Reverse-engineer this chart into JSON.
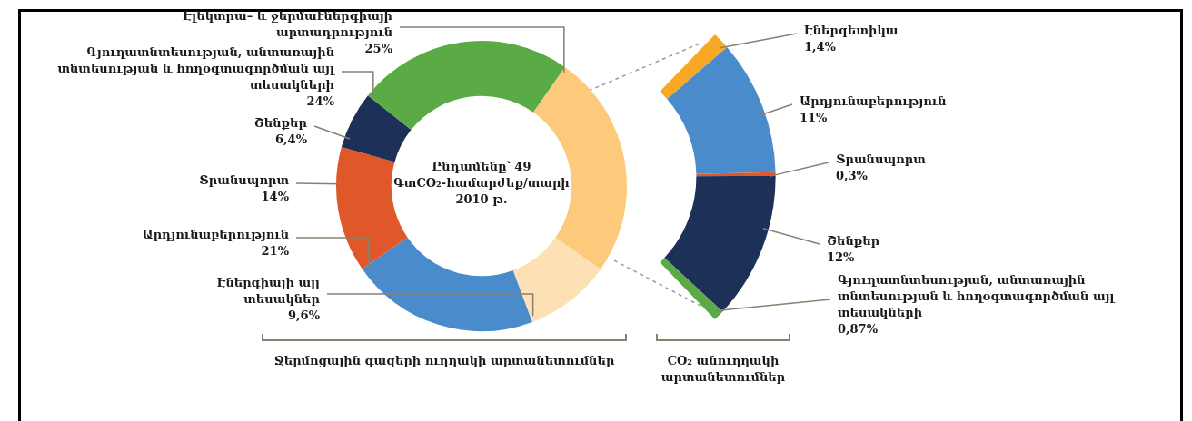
{
  "chart_data": [
    {
      "type": "donut",
      "categories": [
        "Էլեկտրա– և ջերմաէներգիայի արտադրություն",
        "Էներգիայի այլ տեսակներ",
        "Արդյունաբերություն",
        "Տրանսպորտ",
        "Շենքեր",
        "Գյուղատնտեսության, անտառային տնտեսության և հողօգտագործման այլ տեսակների"
      ],
      "values": [
        25,
        9.6,
        21,
        14,
        6.4,
        24
      ],
      "value_labels": [
        "25%",
        "9,6%",
        "21%",
        "14%",
        "6,4%",
        "24%"
      ],
      "colors": [
        "#fdc97a",
        "#fde1b4",
        "#4a8ccb",
        "#e0572a",
        "#1c3058",
        "#5aab46"
      ],
      "annotations": [
        "Ընդամենը՝ 49 ԳտCO₂-համարժեք/տարի 2010 թ.",
        "Ջերմոցային գազերի ուղղակի արտանետումներ"
      ]
    },
    {
      "type": "donut",
      "categories": [
        "Էներգետիկա",
        "Արդյունաբերություն",
        "Տրանսպորտ",
        "Շենքեր",
        "Գյուղատնտեսության, անտառային տնտեսության և հողօգտագործման այլ տեսակների"
      ],
      "values": [
        1.4,
        11,
        0.3,
        12,
        0.87
      ],
      "value_labels": [
        "1,4%",
        "11%",
        "0,3%",
        "12%",
        "0,87%"
      ],
      "colors": [
        "#f9a825",
        "#4a8ccb",
        "#e0572a",
        "#1c3058",
        "#5aab46"
      ],
      "annotations": [
        "CO₂ անուղղակի արտանետումներ"
      ]
    }
  ]
}
